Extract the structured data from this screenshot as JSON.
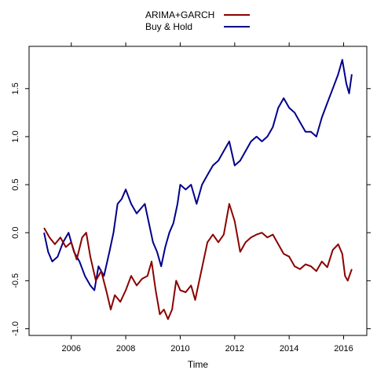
{
  "chart_data": {
    "type": "line",
    "title": "",
    "xlabel": "Time",
    "ylabel": "",
    "xlim": [
      2004.45,
      2016.85
    ],
    "ylim": [
      -1.07,
      1.94
    ],
    "x_ticks": [
      2006,
      2008,
      2010,
      2012,
      2014,
      2016
    ],
    "x_tick_labels": [
      "2006",
      "2008",
      "2010",
      "2012",
      "2014",
      "2016"
    ],
    "y_ticks": [
      -1.0,
      -0.5,
      0.0,
      0.5,
      1.0,
      1.5
    ],
    "y_tick_labels": [
      "-1.0",
      "-0.5",
      "0.0",
      "0.5",
      "1.0",
      "1.5"
    ],
    "grid": false,
    "legend_position": "top-center",
    "series": [
      {
        "name": "ARIMA+GARCH",
        "color": "#8b0000",
        "points": [
          [
            2005.0,
            0.05
          ],
          [
            2005.2,
            -0.05
          ],
          [
            2005.4,
            -0.12
          ],
          [
            2005.6,
            -0.05
          ],
          [
            2005.8,
            -0.15
          ],
          [
            2006.0,
            -0.1
          ],
          [
            2006.2,
            -0.28
          ],
          [
            2006.4,
            -0.05
          ],
          [
            2006.55,
            0.0
          ],
          [
            2006.7,
            -0.25
          ],
          [
            2006.9,
            -0.5
          ],
          [
            2007.1,
            -0.4
          ],
          [
            2007.3,
            -0.62
          ],
          [
            2007.45,
            -0.8
          ],
          [
            2007.6,
            -0.65
          ],
          [
            2007.8,
            -0.72
          ],
          [
            2008.0,
            -0.6
          ],
          [
            2008.2,
            -0.45
          ],
          [
            2008.4,
            -0.55
          ],
          [
            2008.6,
            -0.48
          ],
          [
            2008.8,
            -0.45
          ],
          [
            2008.95,
            -0.3
          ],
          [
            2009.1,
            -0.6
          ],
          [
            2009.25,
            -0.85
          ],
          [
            2009.4,
            -0.8
          ],
          [
            2009.55,
            -0.9
          ],
          [
            2009.7,
            -0.8
          ],
          [
            2009.85,
            -0.5
          ],
          [
            2010.0,
            -0.6
          ],
          [
            2010.2,
            -0.62
          ],
          [
            2010.4,
            -0.55
          ],
          [
            2010.55,
            -0.7
          ],
          [
            2010.7,
            -0.5
          ],
          [
            2010.85,
            -0.3
          ],
          [
            2011.0,
            -0.1
          ],
          [
            2011.2,
            -0.02
          ],
          [
            2011.4,
            -0.1
          ],
          [
            2011.6,
            -0.02
          ],
          [
            2011.8,
            0.3
          ],
          [
            2012.0,
            0.12
          ],
          [
            2012.2,
            -0.2
          ],
          [
            2012.4,
            -0.1
          ],
          [
            2012.6,
            -0.05
          ],
          [
            2012.8,
            -0.02
          ],
          [
            2013.0,
            0.0
          ],
          [
            2013.2,
            -0.05
          ],
          [
            2013.4,
            -0.02
          ],
          [
            2013.6,
            -0.12
          ],
          [
            2013.8,
            -0.22
          ],
          [
            2014.0,
            -0.25
          ],
          [
            2014.2,
            -0.35
          ],
          [
            2014.4,
            -0.38
          ],
          [
            2014.6,
            -0.33
          ],
          [
            2014.8,
            -0.35
          ],
          [
            2015.0,
            -0.4
          ],
          [
            2015.2,
            -0.3
          ],
          [
            2015.4,
            -0.36
          ],
          [
            2015.6,
            -0.18
          ],
          [
            2015.8,
            -0.12
          ],
          [
            2015.95,
            -0.22
          ],
          [
            2016.05,
            -0.45
          ],
          [
            2016.15,
            -0.5
          ],
          [
            2016.3,
            -0.38
          ]
        ]
      },
      {
        "name": "Buy & Hold",
        "color": "#00008b",
        "points": [
          [
            2005.0,
            0.0
          ],
          [
            2005.15,
            -0.2
          ],
          [
            2005.3,
            -0.3
          ],
          [
            2005.5,
            -0.25
          ],
          [
            2005.7,
            -0.1
          ],
          [
            2005.9,
            0.0
          ],
          [
            2006.1,
            -0.2
          ],
          [
            2006.3,
            -0.3
          ],
          [
            2006.5,
            -0.45
          ],
          [
            2006.7,
            -0.55
          ],
          [
            2006.85,
            -0.6
          ],
          [
            2007.0,
            -0.35
          ],
          [
            2007.2,
            -0.45
          ],
          [
            2007.4,
            -0.2
          ],
          [
            2007.55,
            0.0
          ],
          [
            2007.7,
            0.3
          ],
          [
            2007.85,
            0.35
          ],
          [
            2008.0,
            0.45
          ],
          [
            2008.2,
            0.3
          ],
          [
            2008.4,
            0.2
          ],
          [
            2008.55,
            0.25
          ],
          [
            2008.7,
            0.3
          ],
          [
            2008.85,
            0.1
          ],
          [
            2009.0,
            -0.1
          ],
          [
            2009.15,
            -0.2
          ],
          [
            2009.3,
            -0.35
          ],
          [
            2009.45,
            -0.15
          ],
          [
            2009.6,
            0.0
          ],
          [
            2009.75,
            0.1
          ],
          [
            2009.9,
            0.3
          ],
          [
            2010.0,
            0.5
          ],
          [
            2010.2,
            0.45
          ],
          [
            2010.4,
            0.5
          ],
          [
            2010.6,
            0.3
          ],
          [
            2010.8,
            0.5
          ],
          [
            2011.0,
            0.6
          ],
          [
            2011.2,
            0.7
          ],
          [
            2011.4,
            0.75
          ],
          [
            2011.6,
            0.85
          ],
          [
            2011.8,
            0.95
          ],
          [
            2012.0,
            0.7
          ],
          [
            2012.2,
            0.75
          ],
          [
            2012.4,
            0.85
          ],
          [
            2012.6,
            0.95
          ],
          [
            2012.8,
            1.0
          ],
          [
            2013.0,
            0.95
          ],
          [
            2013.2,
            1.0
          ],
          [
            2013.4,
            1.1
          ],
          [
            2013.6,
            1.3
          ],
          [
            2013.8,
            1.4
          ],
          [
            2014.0,
            1.3
          ],
          [
            2014.2,
            1.25
          ],
          [
            2014.4,
            1.15
          ],
          [
            2014.6,
            1.05
          ],
          [
            2014.8,
            1.05
          ],
          [
            2015.0,
            1.0
          ],
          [
            2015.2,
            1.2
          ],
          [
            2015.4,
            1.35
          ],
          [
            2015.6,
            1.5
          ],
          [
            2015.8,
            1.65
          ],
          [
            2015.95,
            1.8
          ],
          [
            2016.1,
            1.55
          ],
          [
            2016.2,
            1.45
          ],
          [
            2016.3,
            1.65
          ]
        ]
      }
    ]
  }
}
